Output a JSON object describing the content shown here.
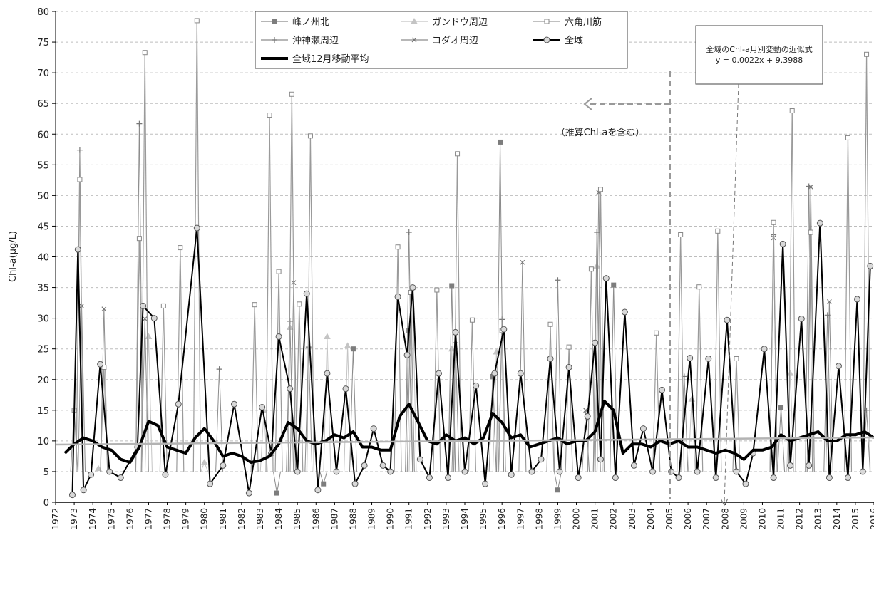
{
  "chart_data": {
    "type": "line",
    "ylabel": "Chl-a(μg/L)",
    "xlabel": "",
    "ylim": [
      0,
      80
    ],
    "y_ticks": [
      0,
      5,
      10,
      15,
      20,
      25,
      30,
      35,
      40,
      45,
      50,
      55,
      60,
      65,
      70,
      75,
      80
    ],
    "xlim": [
      1972,
      2016
    ],
    "x_ticks": [
      "1972",
      "1973",
      "1974",
      "1975",
      "1976",
      "1977",
      "1978",
      "1979",
      "1980",
      "1981",
      "1982",
      "1983",
      "1984",
      "1985",
      "1986",
      "1987",
      "1988",
      "1989",
      "1990",
      "1991",
      "1992",
      "1993",
      "1994",
      "1995",
      "1996",
      "1997",
      "1998",
      "1999",
      "2000",
      "2001",
      "2002",
      "2003",
      "2004",
      "2005",
      "2006",
      "2007",
      "2008",
      "2009",
      "2010",
      "2011",
      "2012",
      "2013",
      "2014",
      "2015",
      "2016"
    ],
    "grid": true,
    "legend_position": "top",
    "legend": [
      {
        "name": "峰ノ州北",
        "color": "#808080",
        "marker": "filled-square"
      },
      {
        "name": "ガンドウ周辺",
        "color": "#bdbdbd",
        "marker": "triangle"
      },
      {
        "name": "六角川筋",
        "color": "#8c8c8c",
        "marker": "open-square"
      },
      {
        "name": "沖神瀬周辺",
        "color": "#8c8c8c",
        "marker": "plus"
      },
      {
        "name": "コダオ周辺",
        "color": "#7a7a7a",
        "marker": "cross"
      },
      {
        "name": "全域",
        "color": "#000000",
        "marker": "open-circle"
      },
      {
        "name": "全域12月移動平均",
        "color": "#000000",
        "marker": "none"
      }
    ],
    "series": [
      {
        "name": "全域",
        "x": [
          1972.9,
          1973.2,
          1973.5,
          1973.9,
          1974.4,
          1974.9,
          1975.5,
          1976.4,
          1976.7,
          1977.3,
          1977.9,
          1978.6,
          1979.6,
          1980.3,
          1981.0,
          1981.6,
          1982.4,
          1983.1,
          1983.6,
          1984.0,
          1984.6,
          1985.0,
          1985.5,
          1986.1,
          1986.6,
          1987.1,
          1987.6,
          1988.1,
          1988.6,
          1989.1,
          1989.6,
          1990.0,
          1990.4,
          1990.9,
          1991.2,
          1991.6,
          1992.1,
          1992.6,
          1993.1,
          1993.5,
          1994.0,
          1994.6,
          1995.1,
          1995.6,
          1996.1,
          1996.5,
          1997.0,
          1997.6,
          1998.1,
          1998.6,
          1999.1,
          1999.6,
          2000.1,
          2000.6,
          2001.0,
          2001.3,
          2001.6,
          2002.1,
          2002.6,
          2003.1,
          2003.6,
          2004.1,
          2004.6,
          2005.1,
          2005.5,
          2006.1,
          2006.5,
          2007.1,
          2007.5,
          2008.1,
          2008.6,
          2009.1,
          2009.5,
          2010.1,
          2010.6,
          2011.1,
          2011.5,
          2012.1,
          2012.5,
          2013.1,
          2013.6,
          2014.1,
          2014.6,
          2015.1,
          2015.4,
          2015.8
        ],
        "values": [
          1.2,
          41.2,
          2.0,
          4.5,
          22.5,
          5.0,
          4.0,
          9.0,
          32.0,
          30.0,
          4.5,
          16.0,
          44.7,
          3.0,
          6.0,
          16.0,
          1.5,
          15.5,
          8.0,
          27.0,
          18.5,
          5.0,
          34.0,
          2.0,
          21.0,
          5.0,
          18.5,
          3.0,
          6.0,
          12.0,
          6.0,
          5.0,
          33.5,
          24.0,
          35.0,
          7.0,
          4.0,
          21.0,
          4.0,
          27.7,
          5.0,
          19.0,
          3.0,
          21.0,
          28.2,
          4.5,
          21.0,
          5.0,
          7.0,
          23.4,
          5.0,
          22.0,
          4.0,
          14.0,
          26.0,
          7.0,
          36.5,
          4.0,
          31.0,
          6.0,
          12.0,
          5.0,
          18.3,
          5.0,
          4.0,
          23.5,
          5.0,
          23.4,
          4.0,
          29.7,
          5.0,
          3.0,
          8.0,
          25.0,
          4.0,
          42.1,
          6.0,
          29.9,
          6.0,
          45.5,
          4.0,
          22.2,
          4.0,
          33.1,
          5.0,
          38.5
        ]
      },
      {
        "name": "全域12月移動平均",
        "x": [
          1972.5,
          1973.0,
          1973.5,
          1974.0,
          1974.5,
          1975.0,
          1975.5,
          1976.0,
          1976.5,
          1977.0,
          1977.5,
          1978.0,
          1978.5,
          1979.0,
          1979.5,
          1980.0,
          1980.5,
          1981.0,
          1981.5,
          1982.0,
          1982.5,
          1983.0,
          1983.5,
          1984.0,
          1984.5,
          1985.0,
          1985.5,
          1986.0,
          1986.5,
          1987.0,
          1987.5,
          1988.0,
          1988.5,
          1989.0,
          1989.5,
          1990.0,
          1990.5,
          1991.0,
          1991.5,
          1992.0,
          1992.5,
          1993.0,
          1993.5,
          1994.0,
          1994.5,
          1995.0,
          1995.5,
          1996.0,
          1996.5,
          1997.0,
          1997.5,
          1998.0,
          1998.5,
          1999.0,
          1999.5,
          2000.0,
          2000.5,
          2001.0,
          2001.5,
          2002.0,
          2002.5,
          2003.0,
          2003.5,
          2004.0,
          2004.5,
          2005.0,
          2005.5,
          2006.0,
          2006.5,
          2007.0,
          2007.5,
          2008.0,
          2008.5,
          2009.0,
          2009.5,
          2010.0,
          2010.5,
          2011.0,
          2011.5,
          2012.0,
          2012.5,
          2013.0,
          2013.5,
          2014.0,
          2014.5,
          2015.0,
          2015.5,
          2016.0
        ],
        "values": [
          8.0,
          9.5,
          10.5,
          10.0,
          9.0,
          8.5,
          7.0,
          6.5,
          9.0,
          13.2,
          12.5,
          9.0,
          8.5,
          8.0,
          10.5,
          12.0,
          10.0,
          7.5,
          8.0,
          7.5,
          6.5,
          6.8,
          7.5,
          9.5,
          13.0,
          12.0,
          10.0,
          9.5,
          10.0,
          11.0,
          10.5,
          11.5,
          9.0,
          9.0,
          8.5,
          8.5,
          14.0,
          16.0,
          13.0,
          10.0,
          9.5,
          11.0,
          10.0,
          10.5,
          9.5,
          10.5,
          14.5,
          13.0,
          10.5,
          11.0,
          9.0,
          9.5,
          10.0,
          10.5,
          9.5,
          10.0,
          10.0,
          11.5,
          16.5,
          15.0,
          8.0,
          9.5,
          9.5,
          9.0,
          10.0,
          9.5,
          10.0,
          9.0,
          9.0,
          8.5,
          8.0,
          8.5,
          8.0,
          7.0,
          8.5,
          8.5,
          9.0,
          11.0,
          10.0,
          10.5,
          11.0,
          11.5,
          10.0,
          10.0,
          11.0,
          11.0,
          11.5,
          10.5
        ]
      },
      {
        "name": "六角川筋",
        "x": [
          1973.0,
          1973.3,
          1974.6,
          1976.5,
          1976.8,
          1977.8,
          1978.7,
          1979.6,
          1982.7,
          1983.5,
          1984.0,
          1984.7,
          1985.1,
          1985.7,
          1990.4,
          1991.1,
          1992.5,
          1993.6,
          1994.4,
          1996.0,
          1998.6,
          1999.6,
          2000.8,
          2001.3,
          2004.3,
          2005.6,
          2006.6,
          2007.6,
          2008.6,
          2010.6,
          2011.6,
          2012.6,
          2014.6,
          2015.6
        ],
        "values": [
          15.0,
          52.6,
          22.0,
          43.0,
          73.3,
          32.0,
          41.5,
          78.5,
          32.2,
          63.1,
          37.6,
          66.5,
          32.3,
          59.7,
          41.6,
          34.2,
          34.6,
          56.8,
          29.7,
          28.0,
          29.0,
          25.3,
          38.0,
          51.0,
          27.6,
          43.6,
          35.1,
          44.2,
          23.4,
          45.6,
          63.8,
          44.0,
          59.4,
          73.0
        ]
      },
      {
        "name": "峰ノ州北",
        "x": [
          1983.9,
          1986.4,
          1988.0,
          1991.0,
          1993.3,
          1995.5,
          1995.9,
          1999.0,
          2002.0,
          2011.0
        ],
        "values": [
          1.5,
          3.0,
          25.0,
          28.0,
          35.3,
          20.5,
          58.7,
          2.0,
          35.4,
          15.4
        ]
      },
      {
        "name": "沖神瀬周辺",
        "x": [
          1973.3,
          1976.5,
          1980.8,
          1984.6,
          1985.6,
          1991.0,
          1993.5,
          1996.0,
          1999.0,
          2001.1,
          2005.8,
          2010.6,
          2012.5,
          2013.5,
          2015.6
        ],
        "values": [
          57.4,
          61.7,
          21.7,
          29.5,
          25.3,
          44.0,
          26.0,
          29.8,
          36.2,
          44.0,
          20.5,
          43.6,
          51.5,
          30.5,
          15.0
        ]
      },
      {
        "name": "コダオ周辺",
        "x": [
          1973.4,
          1974.6,
          1976.8,
          1984.8,
          1997.1,
          2000.5,
          2001.2,
          2010.6,
          2012.6,
          2013.6
        ],
        "values": [
          32.0,
          31.5,
          29.9,
          35.8,
          39.1,
          15.0,
          50.5,
          43.1,
          51.4,
          32.7
        ]
      },
      {
        "name": "ガンドウ周辺",
        "x": [
          1974.3,
          1977.0,
          1980.0,
          1983.2,
          1984.6,
          1986.6,
          1987.7,
          1991.2,
          1993.3,
          1995.7,
          2001.1,
          2006.2,
          2011.5
        ],
        "values": [
          5.5,
          27.0,
          6.5,
          15.0,
          28.5,
          27.0,
          25.5,
          35.0,
          25.0,
          24.5,
          38.5,
          16.8,
          21.0
        ]
      }
    ],
    "trendline": {
      "slope": 0.0022,
      "intercept": 9.3988,
      "label": "全域のChl-a月別変動の近似式",
      "equation": "y = 0.0022x + 9.3988"
    },
    "annotations": {
      "estimated_note": "（推算Chl-aを含む）",
      "equation_title": "全域のChl-a月別変動の近似式",
      "equation": "y = 0.0022x + 9.3988"
    }
  }
}
